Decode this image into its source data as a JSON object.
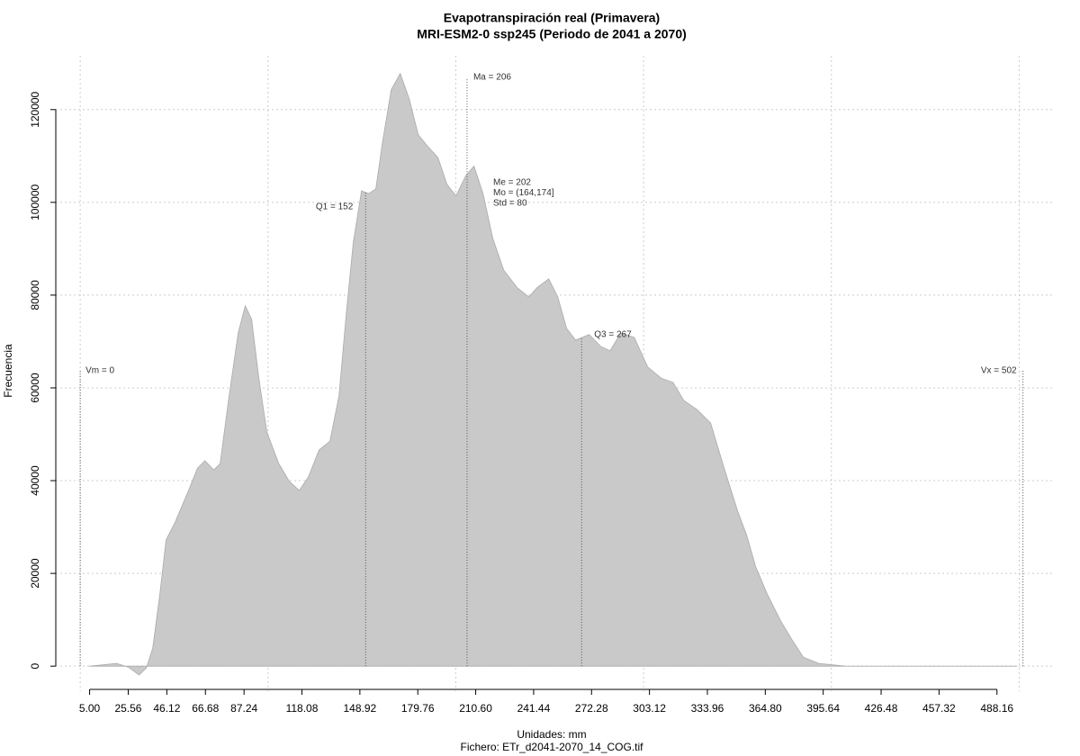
{
  "chart_data": {
    "type": "area",
    "title": "Evapotranspiración real (Primavera)",
    "subtitle": "MRI-ESM2-0 ssp245 (Periodo de 2041 a 2070)",
    "xlabel": "Unidades: mm",
    "footer": "Fichero: ETr_d2041-2070_14_COG.tif",
    "ylabel": "Frecuencia",
    "color": "#c9c9c9",
    "grid": true,
    "xgrid": [
      0,
      100,
      200,
      300,
      400,
      500
    ],
    "xlim": [
      -13,
      518
    ],
    "ylim": [
      -5400,
      131600
    ],
    "xticks": [
      {
        "value": 5,
        "label": "5.00"
      },
      25.56,
      46.12,
      66.68,
      87.24,
      118.08,
      148.92,
      179.76,
      {
        "value": 210.6,
        "label": "210.60"
      },
      241.44,
      272.28,
      303.12,
      333.96,
      {
        "value": 364.8,
        "label": "364.80"
      },
      395.64,
      426.48,
      457.32,
      488.16
    ],
    "yticks": [
      0,
      20000,
      40000,
      60000,
      80000,
      100000,
      120000
    ],
    "x": [
      5,
      19.4,
      25.6,
      31.4,
      35.2,
      38.6,
      42.4,
      45.7,
      50.5,
      57.7,
      62.5,
      66.4,
      71.1,
      74.5,
      79.3,
      84.1,
      87.9,
      91.3,
      95.1,
      99.4,
      105.7,
      111.4,
      116.7,
      121.5,
      127.2,
      133,
      137.8,
      141.6,
      145.4,
      149.8,
      153.6,
      157.4,
      160.8,
      165.6,
      170.4,
      175.2,
      180,
      184.8,
      190.5,
      195.3,
      200.1,
      205.4,
      209.7,
      214.5,
      219.7,
      225.5,
      232.7,
      238.9,
      243.2,
      249.5,
      254.3,
      259,
      263.8,
      271,
      277.3,
      282.1,
      287.8,
      295,
      302.2,
      309.4,
      315.6,
      321.4,
      328.5,
      335.7,
      342.9,
      350.1,
      354.9,
      359.7,
      365.9,
      373.1,
      378.9,
      385.1,
      393.3,
      407.6,
      436.4,
      498.7
    ],
    "values": [
      0,
      600,
      -200,
      -1900,
      -400,
      3900,
      15500,
      27200,
      31000,
      37900,
      42700,
      44300,
      42300,
      43700,
      58300,
      71800,
      77700,
      74800,
      62100,
      50500,
      43700,
      39800,
      37900,
      40800,
      46600,
      48500,
      58300,
      75700,
      91300,
      102500,
      101900,
      102900,
      112600,
      124300,
      127800,
      122300,
      114600,
      112200,
      109700,
      103900,
      101400,
      105800,
      107800,
      101900,
      92200,
      85400,
      81600,
      79600,
      81600,
      83500,
      79600,
      72800,
      70300,
      71500,
      68900,
      68000,
      71800,
      70900,
      64500,
      62100,
      61200,
      57300,
      55300,
      52400,
      42700,
      33400,
      28200,
      21400,
      15500,
      9700,
      5800,
      1900,
      600,
      0,
      0,
      0
    ],
    "annotations": [
      {
        "label": "Vm = 0",
        "x": 0
      },
      {
        "label": "Q1 = 152",
        "x": 152
      },
      {
        "label": "Ma = 206",
        "x": 206
      },
      {
        "label": "Q3 = 267",
        "x": 267
      },
      {
        "label": "Vx = 502",
        "x": 502
      }
    ],
    "stats": [
      "Me = 202",
      "Mo = (164,174]",
      "Std = 80"
    ]
  }
}
